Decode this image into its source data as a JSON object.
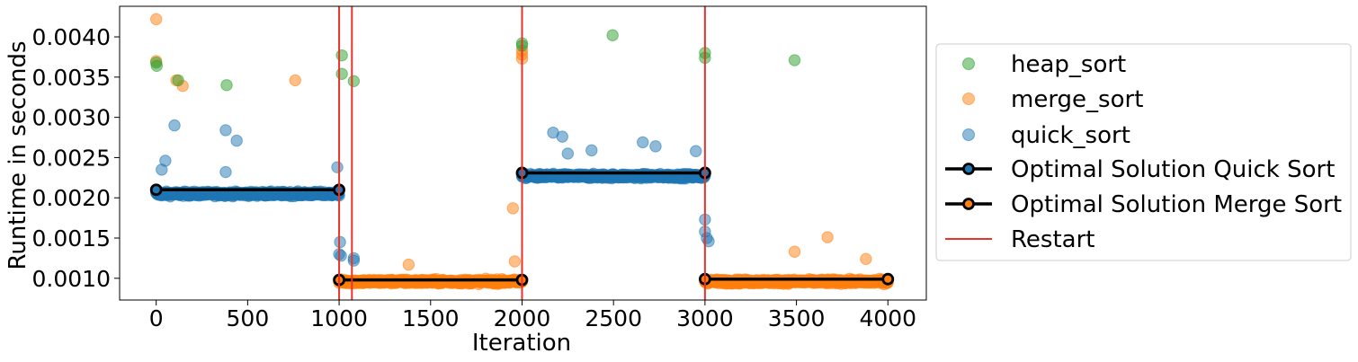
{
  "chart_data": {
    "type": "scatter",
    "title": "",
    "xlabel": "Iteration",
    "ylabel": "Runtime in seconds",
    "xlim": [
      -200,
      4210
    ],
    "ylim": [
      0.00073,
      0.00438
    ],
    "xticks": [
      0,
      500,
      1000,
      1500,
      2000,
      2500,
      3000,
      3500,
      4000
    ],
    "yticks": [
      0.001,
      0.0015,
      0.002,
      0.0025,
      0.003,
      0.0035,
      0.004
    ],
    "xtick_labels": [
      "0",
      "500",
      "1000",
      "1500",
      "2000",
      "2500",
      "3000",
      "3500",
      "4000"
    ],
    "ytick_labels": [
      "0.0010",
      "0.0015",
      "0.0020",
      "0.0025",
      "0.0030",
      "0.0035",
      "0.0040"
    ],
    "grid": false,
    "legend_position": "outside-right",
    "series": [
      {
        "name": "heap_sort",
        "kind": "scatter",
        "color": "#2ca02c",
        "points": [
          [
            0,
            0.00368
          ],
          [
            3,
            0.00364
          ],
          [
            120,
            0.00346
          ],
          [
            385,
            0.0034
          ],
          [
            1015,
            0.00377
          ],
          [
            1015,
            0.00354
          ],
          [
            1080,
            0.00345
          ],
          [
            2000,
            0.00392
          ],
          [
            2000,
            0.00389
          ],
          [
            2495,
            0.00402
          ],
          [
            3000,
            0.0038
          ],
          [
            3000,
            0.00374
          ],
          [
            3490,
            0.00371
          ]
        ]
      },
      {
        "name": "merge_sort",
        "kind": "scatter",
        "color": "#ff7f0e",
        "points": [
          [
            0,
            0.00422
          ],
          [
            0,
            0.0037
          ],
          [
            110,
            0.00346
          ],
          [
            145,
            0.00339
          ],
          [
            760,
            0.00346
          ],
          [
            1950,
            0.00187
          ],
          [
            2000,
            0.00383
          ],
          [
            2000,
            0.00378
          ],
          [
            2000,
            0.00373
          ],
          [
            3490,
            0.00133
          ],
          [
            3670,
            0.00151
          ],
          [
            3880,
            0.00124
          ],
          [
            1380,
            0.00117
          ],
          [
            1960,
            0.00121
          ]
        ],
        "band": {
          "x": [
            1000,
            2000,
            3000,
            4000
          ],
          "y_center": 0.00096,
          "spread": 7e-05,
          "segments": [
            [
              1000,
              2000
            ],
            [
              3000,
              4000
            ]
          ]
        }
      },
      {
        "name": "quick_sort",
        "kind": "scatter",
        "color": "#1f77b4",
        "points": [
          [
            100,
            0.0029
          ],
          [
            50,
            0.00246
          ],
          [
            380,
            0.00284
          ],
          [
            440,
            0.00271
          ],
          [
            380,
            0.00232
          ],
          [
            30,
            0.00235
          ],
          [
            990,
            0.00238
          ],
          [
            1005,
            0.00145
          ],
          [
            1000,
            0.0013
          ],
          [
            1010,
            0.00128
          ],
          [
            1080,
            0.00125
          ],
          [
            1080,
            0.00122
          ],
          [
            2170,
            0.00281
          ],
          [
            2220,
            0.00276
          ],
          [
            2660,
            0.00269
          ],
          [
            2730,
            0.00264
          ],
          [
            2950,
            0.00258
          ],
          [
            3000,
            0.00173
          ],
          [
            3000,
            0.00158
          ],
          [
            3010,
            0.0015
          ],
          [
            3020,
            0.00146
          ],
          [
            2250,
            0.00255
          ],
          [
            2380,
            0.00259
          ]
        ],
        "band": {
          "y_center_by_segment": [
            [
              0,
              1000,
              0.00205
            ],
            [
              2000,
              3000,
              0.00227
            ]
          ],
          "spread": 7e-05
        }
      },
      {
        "name": "Optimal Solution Quick Sort",
        "kind": "line",
        "color": "#000000",
        "marker_color": "#1f77b4",
        "segments": [
          [
            [
              0,
              0.0021
            ],
            [
              1000,
              0.0021
            ]
          ],
          [
            [
              2000,
              0.00231
            ],
            [
              3000,
              0.00231
            ]
          ]
        ]
      },
      {
        "name": "Optimal Solution Merge Sort",
        "kind": "line",
        "color": "#000000",
        "marker_color": "#ff7f0e",
        "segments": [
          [
            [
              1000,
              0.00098
            ],
            [
              2000,
              0.00098
            ]
          ],
          [
            [
              3000,
              0.00099
            ],
            [
              4000,
              0.00099
            ]
          ]
        ]
      },
      {
        "name": "Restart",
        "kind": "vline",
        "color": "#e8332b",
        "x": [
          1000,
          1070,
          2000,
          3000
        ]
      }
    ]
  }
}
